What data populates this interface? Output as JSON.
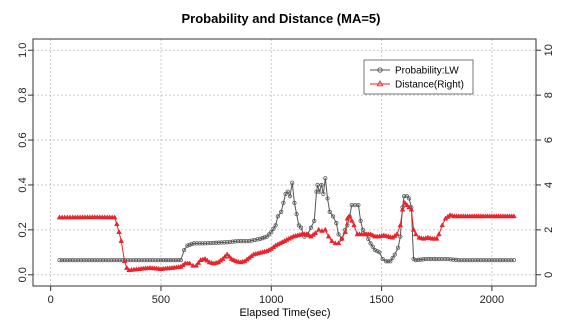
{
  "chart_data": {
    "type": "line",
    "title": "Probability and Distance (MA=5)",
    "xlabel": "Elapsed Time(sec)",
    "ylabel": "",
    "xlim": [
      -80,
      2200
    ],
    "ylim": [
      -0.05,
      1.05
    ],
    "y2lim": [
      -0.5,
      10.5
    ],
    "x_ticks": [
      0,
      500,
      1000,
      1500,
      2000
    ],
    "y_ticks": [
      "0.0",
      "0.2",
      "0.4",
      "0.6",
      "0.8",
      "1.0"
    ],
    "y2_ticks": [
      "0",
      "2",
      "4",
      "6",
      "8",
      "10"
    ],
    "grid": true,
    "legend_position": "top-right",
    "colors": {
      "probability": "#555555",
      "distance": "#e8242c",
      "grid": "#bdbdbd"
    },
    "series": [
      {
        "name": "Probability:LW",
        "axis": "left",
        "marker": "circle",
        "points": [
          [
            40,
            0.065
          ],
          [
            100,
            0.065
          ],
          [
            200,
            0.065
          ],
          [
            300,
            0.065
          ],
          [
            400,
            0.065
          ],
          [
            500,
            0.065
          ],
          [
            590,
            0.065
          ],
          [
            605,
            0.11
          ],
          [
            620,
            0.13
          ],
          [
            650,
            0.14
          ],
          [
            700,
            0.14
          ],
          [
            800,
            0.145
          ],
          [
            850,
            0.15
          ],
          [
            900,
            0.15
          ],
          [
            950,
            0.16
          ],
          [
            980,
            0.17
          ],
          [
            1000,
            0.19
          ],
          [
            1020,
            0.22
          ],
          [
            1030,
            0.26
          ],
          [
            1045,
            0.28
          ],
          [
            1055,
            0.32
          ],
          [
            1065,
            0.36
          ],
          [
            1075,
            0.37
          ],
          [
            1085,
            0.35
          ],
          [
            1095,
            0.41
          ],
          [
            1105,
            0.32
          ],
          [
            1115,
            0.27
          ],
          [
            1125,
            0.22
          ],
          [
            1135,
            0.21
          ],
          [
            1150,
            0.17
          ],
          [
            1165,
            0.18
          ],
          [
            1180,
            0.21
          ],
          [
            1195,
            0.24
          ],
          [
            1205,
            0.37
          ],
          [
            1210,
            0.4
          ],
          [
            1218,
            0.37
          ],
          [
            1228,
            0.4
          ],
          [
            1236,
            0.36
          ],
          [
            1245,
            0.43
          ],
          [
            1255,
            0.34
          ],
          [
            1265,
            0.28
          ],
          [
            1280,
            0.26
          ],
          [
            1295,
            0.23
          ],
          [
            1305,
            0.18
          ],
          [
            1320,
            0.16
          ],
          [
            1335,
            0.2
          ],
          [
            1345,
            0.22
          ],
          [
            1355,
            0.26
          ],
          [
            1365,
            0.31
          ],
          [
            1380,
            0.31
          ],
          [
            1395,
            0.31
          ],
          [
            1405,
            0.24
          ],
          [
            1415,
            0.2
          ],
          [
            1430,
            0.18
          ],
          [
            1450,
            0.14
          ],
          [
            1470,
            0.11
          ],
          [
            1490,
            0.1
          ],
          [
            1505,
            0.07
          ],
          [
            1520,
            0.06
          ],
          [
            1540,
            0.06
          ],
          [
            1560,
            0.09
          ],
          [
            1575,
            0.12
          ],
          [
            1585,
            0.17
          ],
          [
            1595,
            0.3
          ],
          [
            1602,
            0.35
          ],
          [
            1615,
            0.35
          ],
          [
            1625,
            0.34
          ],
          [
            1635,
            0.3
          ],
          [
            1645,
            0.07
          ],
          [
            1655,
            0.065
          ],
          [
            1700,
            0.07
          ],
          [
            1760,
            0.07
          ],
          [
            1800,
            0.07
          ],
          [
            1850,
            0.065
          ],
          [
            1900,
            0.065
          ],
          [
            2000,
            0.065
          ],
          [
            2100,
            0.065
          ]
        ]
      },
      {
        "name": "Distance(Right)",
        "axis": "right",
        "marker": "triangle",
        "points": [
          [
            40,
            2.55
          ],
          [
            100,
            2.55
          ],
          [
            200,
            2.56
          ],
          [
            290,
            2.55
          ],
          [
            300,
            2.25
          ],
          [
            310,
            1.9
          ],
          [
            320,
            1.5
          ],
          [
            335,
            0.6
          ],
          [
            345,
            0.3
          ],
          [
            355,
            0.2
          ],
          [
            400,
            0.25
          ],
          [
            450,
            0.3
          ],
          [
            500,
            0.25
          ],
          [
            550,
            0.3
          ],
          [
            590,
            0.35
          ],
          [
            610,
            0.5
          ],
          [
            630,
            0.5
          ],
          [
            645,
            0.4
          ],
          [
            660,
            0.4
          ],
          [
            680,
            0.65
          ],
          [
            700,
            0.7
          ],
          [
            720,
            0.55
          ],
          [
            740,
            0.5
          ],
          [
            760,
            0.55
          ],
          [
            780,
            0.7
          ],
          [
            800,
            0.9
          ],
          [
            820,
            0.7
          ],
          [
            840,
            0.6
          ],
          [
            860,
            0.55
          ],
          [
            880,
            0.6
          ],
          [
            900,
            0.75
          ],
          [
            920,
            0.9
          ],
          [
            940,
            0.95
          ],
          [
            960,
            1.0
          ],
          [
            980,
            1.05
          ],
          [
            1000,
            1.15
          ],
          [
            1020,
            1.3
          ],
          [
            1040,
            1.4
          ],
          [
            1060,
            1.5
          ],
          [
            1080,
            1.6
          ],
          [
            1100,
            1.7
          ],
          [
            1120,
            1.75
          ],
          [
            1140,
            1.8
          ],
          [
            1160,
            1.8
          ],
          [
            1180,
            1.7
          ],
          [
            1200,
            1.85
          ],
          [
            1215,
            2.0
          ],
          [
            1230,
            1.95
          ],
          [
            1245,
            2.0
          ],
          [
            1260,
            1.7
          ],
          [
            1275,
            1.5
          ],
          [
            1290,
            1.4
          ],
          [
            1305,
            1.4
          ],
          [
            1320,
            1.6
          ],
          [
            1335,
            1.9
          ],
          [
            1345,
            2.5
          ],
          [
            1355,
            2.6
          ],
          [
            1365,
            2.4
          ],
          [
            1375,
            2.2
          ],
          [
            1390,
            1.8
          ],
          [
            1410,
            1.8
          ],
          [
            1430,
            1.8
          ],
          [
            1450,
            1.8
          ],
          [
            1470,
            1.7
          ],
          [
            1490,
            1.7
          ],
          [
            1510,
            1.75
          ],
          [
            1530,
            1.7
          ],
          [
            1550,
            1.65
          ],
          [
            1570,
            1.8
          ],
          [
            1585,
            2.2
          ],
          [
            1595,
            2.9
          ],
          [
            1605,
            3.2
          ],
          [
            1615,
            3.1
          ],
          [
            1625,
            3.0
          ],
          [
            1635,
            2.9
          ],
          [
            1645,
            2.0
          ],
          [
            1655,
            1.8
          ],
          [
            1670,
            1.65
          ],
          [
            1690,
            1.6
          ],
          [
            1710,
            1.65
          ],
          [
            1730,
            1.6
          ],
          [
            1750,
            1.6
          ],
          [
            1760,
            1.8
          ],
          [
            1775,
            2.2
          ],
          [
            1790,
            2.5
          ],
          [
            1810,
            2.65
          ],
          [
            1830,
            2.6
          ],
          [
            1850,
            2.6
          ],
          [
            1900,
            2.6
          ],
          [
            1950,
            2.6
          ],
          [
            2000,
            2.6
          ],
          [
            2050,
            2.6
          ],
          [
            2100,
            2.6
          ]
        ]
      }
    ]
  }
}
